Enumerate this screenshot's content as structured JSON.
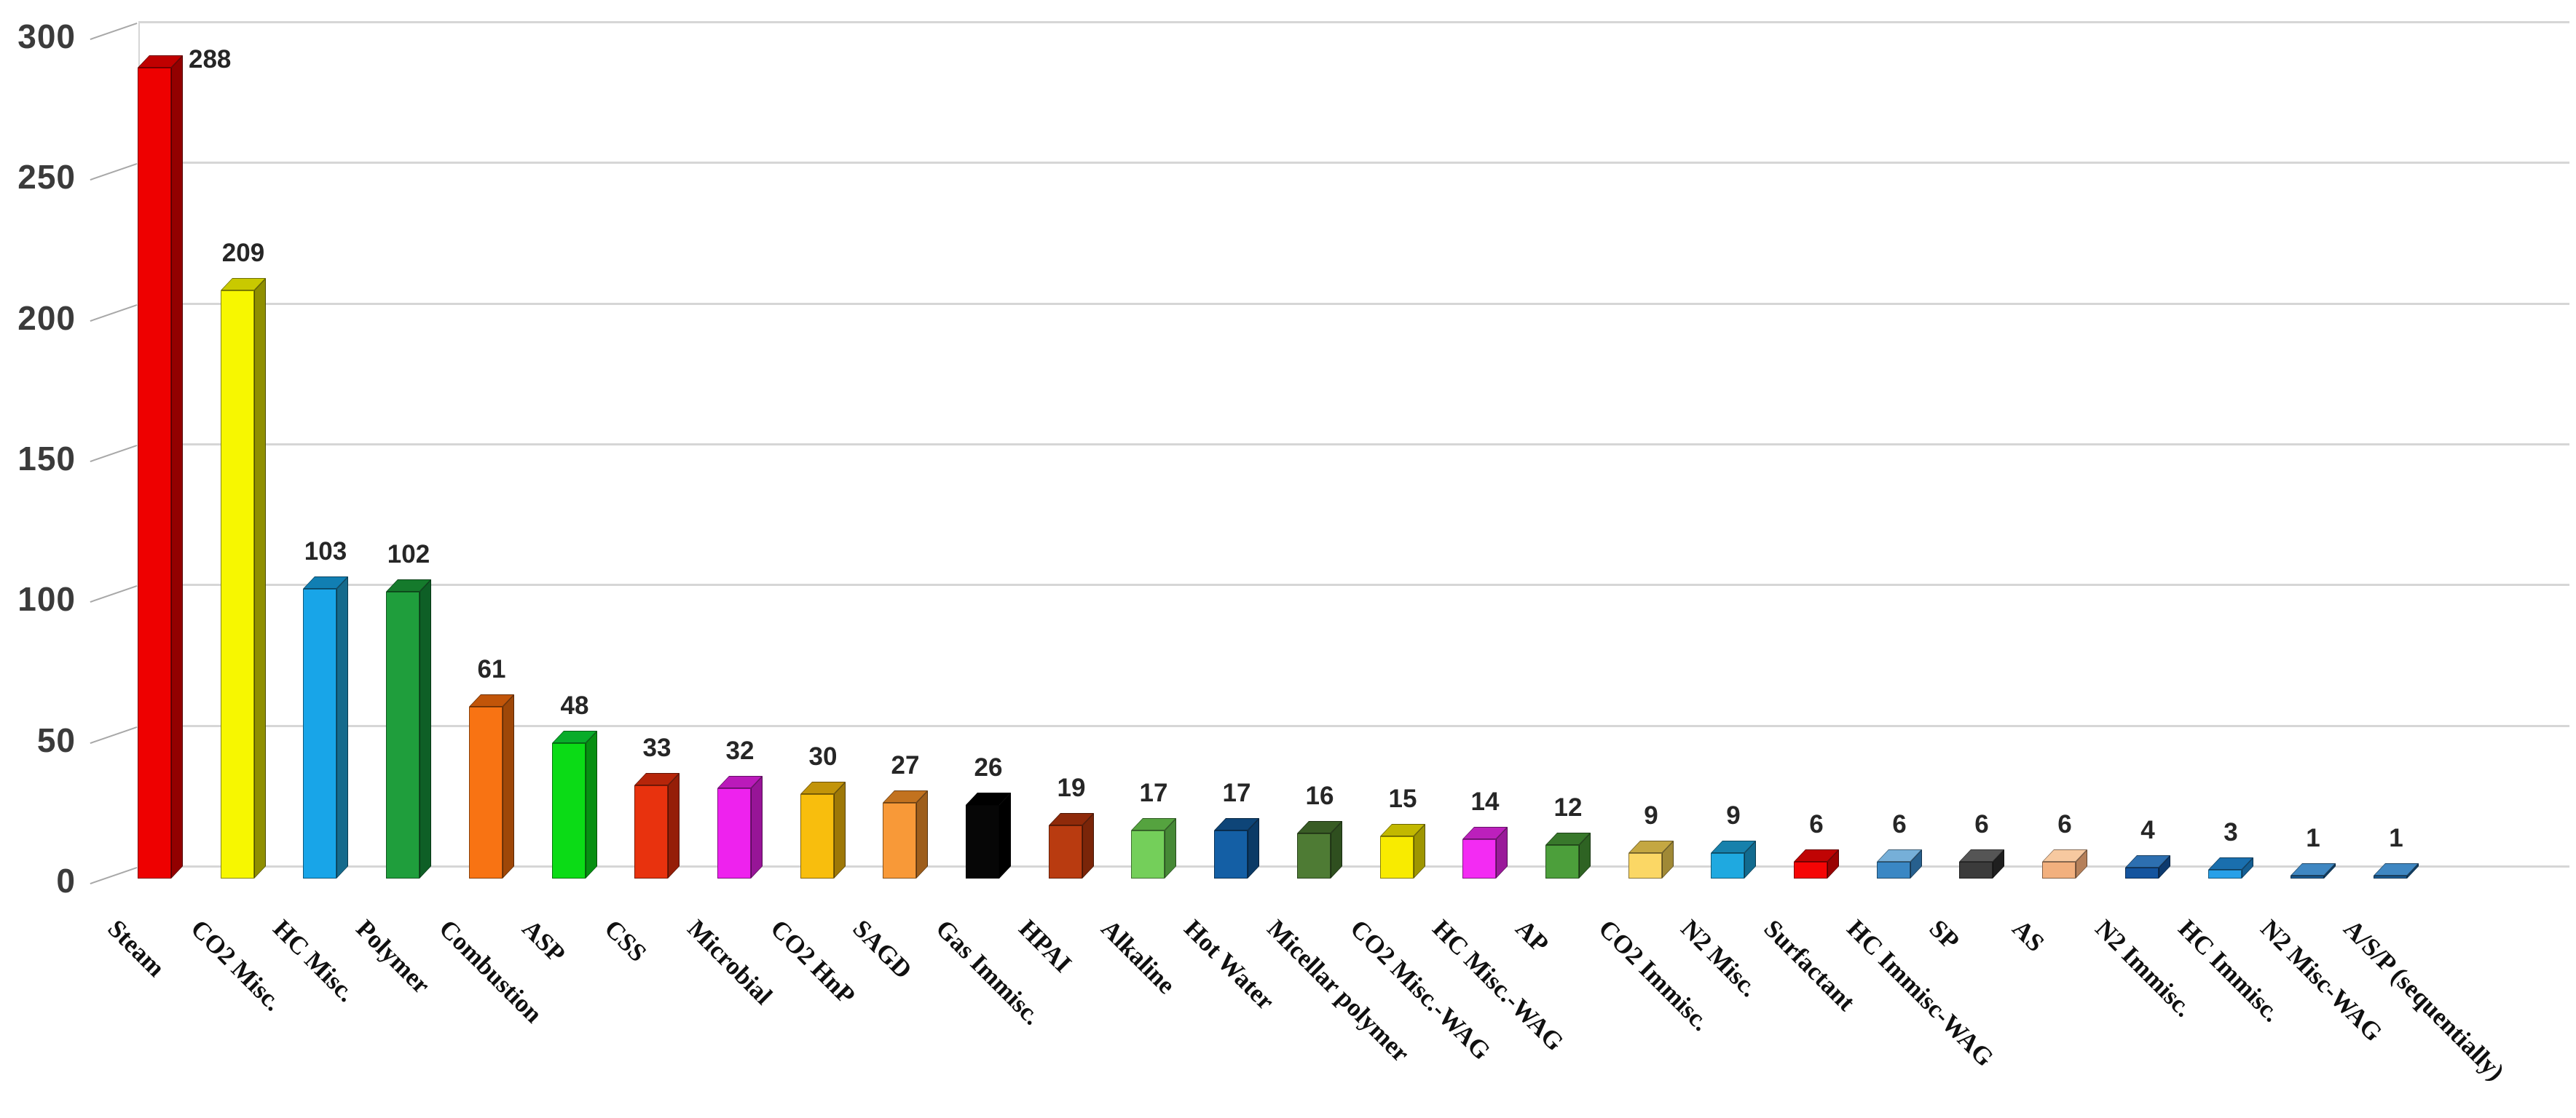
{
  "chart_data": {
    "type": "bar",
    "subtype": "3d-column",
    "title": "",
    "xlabel": "",
    "ylabel": "",
    "ylim": [
      0,
      300
    ],
    "y_ticks": [
      "300",
      "250",
      "200",
      "150",
      "100",
      "50",
      "0"
    ],
    "grid": true,
    "legend": false,
    "categories": [
      "Steam",
      "CO2 Misc.",
      "HC Misc.",
      "Polymer",
      "Combustion",
      "ASP",
      "CSS",
      "Microbial",
      "CO2 HnP",
      "SAGD",
      "Gas Immisc.",
      "HPAI",
      "Alkaline",
      "Hot Water",
      "Micellar polymer",
      "CO2 Misc.-WAG",
      "HC Misc.-WAG",
      "AP",
      "CO2 Immisc.",
      "N2 Misc.",
      "Surfactant",
      "HC Immisc-WAG",
      "SP",
      "AS",
      "N2 Immisc.",
      "HC Immisc.",
      "N2 Misc-WAG",
      "A/S/P (sequentially)"
    ],
    "values": [
      288,
      209,
      103,
      102,
      61,
      48,
      33,
      32,
      30,
      27,
      26,
      19,
      17,
      17,
      16,
      15,
      14,
      12,
      9,
      9,
      6,
      6,
      6,
      6,
      4,
      3,
      1,
      1
    ],
    "bar_colors": [
      {
        "front": "#ee0000",
        "top": "#c00000",
        "side": "#930000"
      },
      {
        "front": "#f7f700",
        "top": "#c9c900",
        "side": "#8f8f00"
      },
      {
        "front": "#18a5e8",
        "top": "#117fb3",
        "side": "#156a8c"
      },
      {
        "front": "#1f9e3c",
        "top": "#157a2c",
        "side": "#0e5f26"
      },
      {
        "front": "#f87313",
        "top": "#c25509",
        "side": "#9e4708"
      },
      {
        "front": "#0bdb16",
        "top": "#09ac2a",
        "side": "#078f12"
      },
      {
        "front": "#e8320e",
        "top": "#b6250a",
        "side": "#951e08"
      },
      {
        "front": "#ee22ee",
        "top": "#ba1aba",
        "side": "#971597"
      },
      {
        "front": "#f8be0d",
        "top": "#c29409",
        "side": "#9e7807"
      },
      {
        "front": "#f89938",
        "top": "#c2721f",
        "side": "#9e5e1c"
      },
      {
        "front": "#060606",
        "top": "#000000",
        "side": "#000000"
      },
      {
        "front": "#b93b10",
        "top": "#8f2a0a",
        "side": "#7a2509"
      },
      {
        "front": "#74cf5a",
        "top": "#55a33f",
        "side": "#468936"
      },
      {
        "front": "#145fa5",
        "top": "#0e4578",
        "side": "#0b3a66"
      },
      {
        "front": "#4e7b34",
        "top": "#395c25",
        "side": "#2f4f1f"
      },
      {
        "front": "#f8eb00",
        "top": "#c2b800",
        "side": "#9e9600"
      },
      {
        "front": "#f32bf3",
        "top": "#bc20bc",
        "side": "#9a1a9a"
      },
      {
        "front": "#4c9f3b",
        "top": "#38782b",
        "side": "#2e6323"
      },
      {
        "front": "#fbd765",
        "top": "#c4a742",
        "side": "#a08936"
      },
      {
        "front": "#1fa9e0",
        "top": "#1781ac",
        "side": "#126b8f"
      },
      {
        "front": "#f50505",
        "top": "#c00404",
        "side": "#990303"
      },
      {
        "front": "#3a87c4",
        "top": "#76afd8",
        "side": "#27608e"
      },
      {
        "front": "#3b3b3b",
        "top": "#555555",
        "side": "#1f1f1f"
      },
      {
        "front": "#f2b07e",
        "top": "#f7c9a0",
        "side": "#b5805a"
      },
      {
        "front": "#14549e",
        "top": "#2d6fb0",
        "side": "#0d3a6e"
      },
      {
        "front": "#28a0e8",
        "top": "#1a6fae",
        "side": "#155e92"
      },
      {
        "front": "#1c5e96",
        "top": "#3f87c2",
        "side": "#12456e"
      },
      {
        "front": "#1c5e96",
        "top": "#3f87c2",
        "side": "#12456e"
      }
    ],
    "gridline_color": "#d6d6d6",
    "axis_label_color": "#3b3b3b",
    "value_label_color": "#262626",
    "category_label_color": "#101010"
  }
}
